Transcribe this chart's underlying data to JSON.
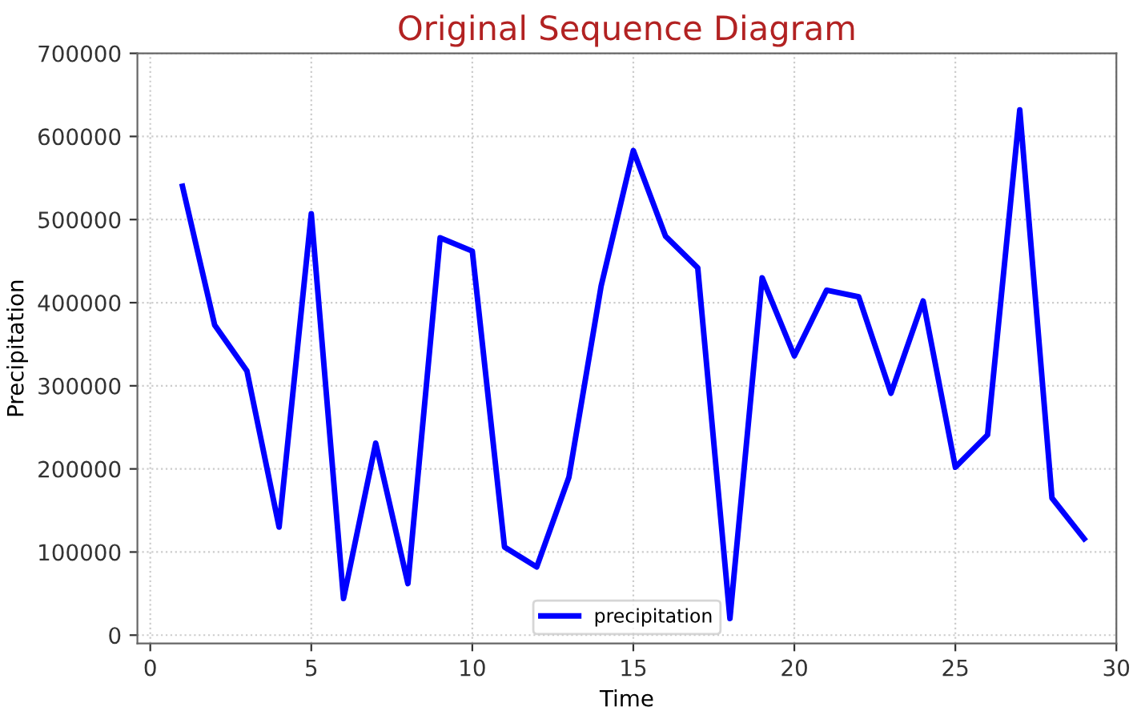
{
  "chart_data": {
    "type": "line",
    "title": "Original Sequence Diagram",
    "xlabel": "Time",
    "ylabel": "Precipitation",
    "x": [
      1,
      2,
      3,
      4,
      5,
      6,
      7,
      8,
      9,
      10,
      11,
      12,
      13,
      14,
      15,
      16,
      17,
      18,
      19,
      20,
      21,
      22,
      23,
      24,
      25,
      26,
      27,
      28,
      29
    ],
    "series": [
      {
        "name": "precipitation",
        "color": "#0000ff",
        "values": [
          540000,
          373000,
          318000,
          130000,
          507000,
          44000,
          231000,
          62000,
          478000,
          462000,
          106000,
          82000,
          190000,
          420000,
          583000,
          480000,
          442000,
          20000,
          430000,
          336000,
          415000,
          407000,
          291000,
          402000,
          202000,
          241000,
          632000,
          165000,
          116000
        ]
      }
    ],
    "xlim": [
      -0.4,
      30
    ],
    "ylim": [
      -10000,
      700000
    ],
    "xticks": [
      0,
      5,
      10,
      15,
      20,
      25,
      30
    ],
    "yticks": [
      0,
      100000,
      200000,
      300000,
      400000,
      500000,
      600000,
      700000
    ],
    "grid": true,
    "legend": "bottom",
    "line_style": "solid",
    "marker": "none"
  }
}
